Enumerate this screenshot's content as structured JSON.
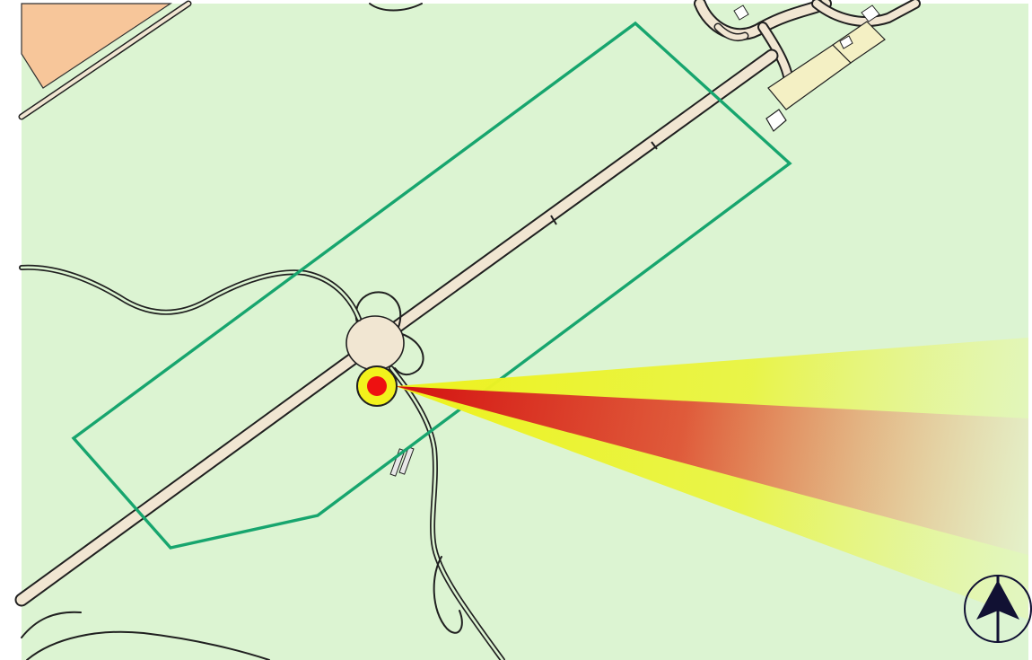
{
  "map": {
    "colors": {
      "land": "#dcf4d2",
      "residential_area": "#f7c69a",
      "road_fill": "#f1e6d2",
      "road_casing": "#202020",
      "footpath": "#202020",
      "building_fill": "#f4f0c4",
      "geofence_stroke": "#17a56e",
      "aircraft_marker_fill": "#f2f21c",
      "aircraft_marker_center": "#ee1111",
      "fov_outer": "#eef21c",
      "fov_inner": "#dd1111",
      "compass_stroke": "#111133"
    },
    "icons": {
      "aircraft_marker": "aircraft-position-icon",
      "compass": "north-arrow-compass-icon"
    }
  }
}
